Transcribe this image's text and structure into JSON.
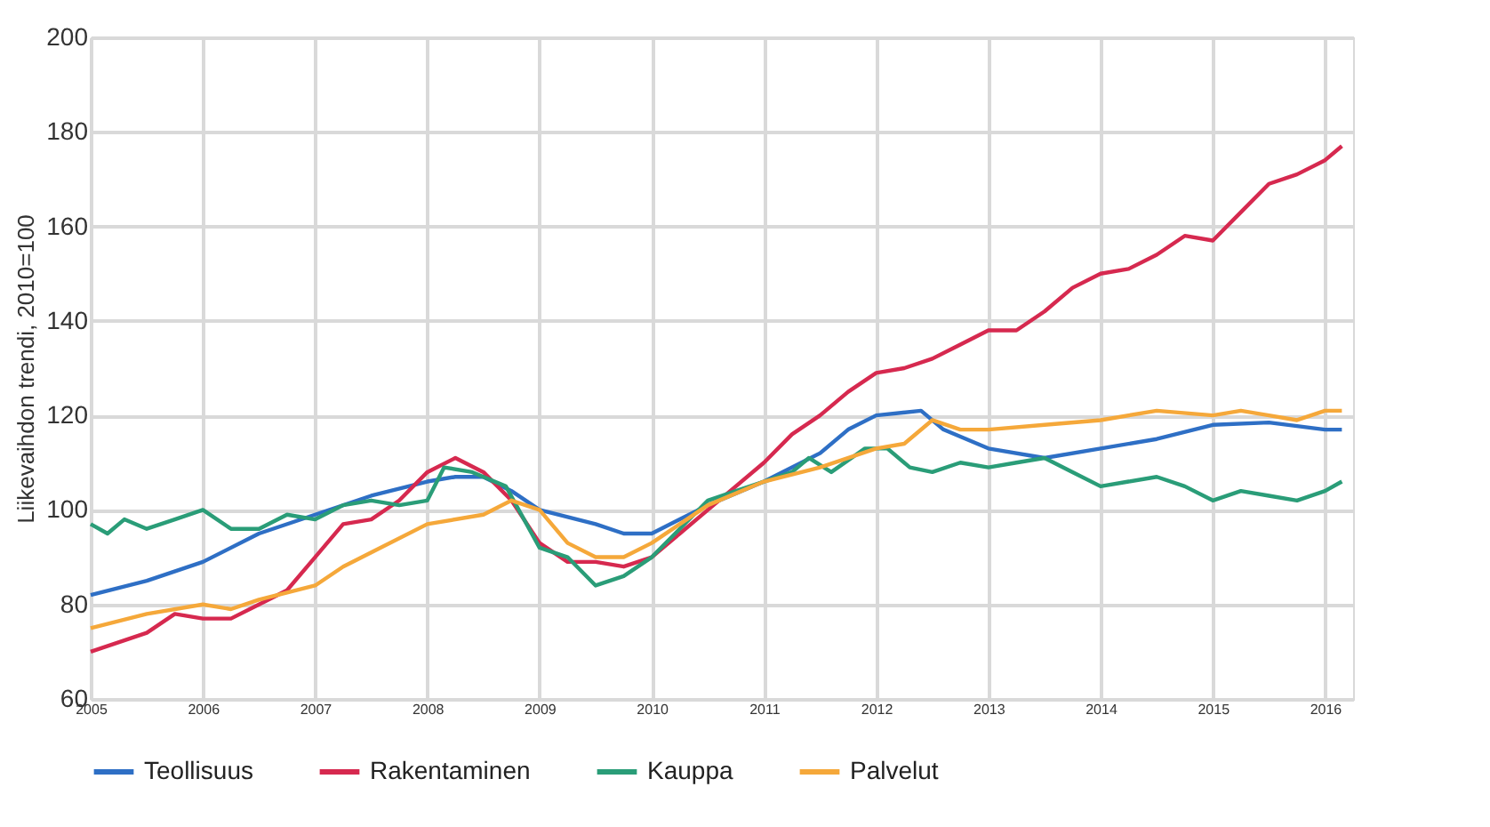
{
  "chart_data": {
    "type": "line",
    "ylabel": "Liikevaihdon trendi, 2010=100",
    "xlim": [
      2005,
      2016.25
    ],
    "xticks": [
      2005,
      2006,
      2007,
      2008,
      2009,
      2010,
      2011,
      2012,
      2013,
      2014,
      2015,
      2016
    ],
    "ylim": [
      60,
      200
    ],
    "yticks": [
      60,
      80,
      100,
      120,
      140,
      160,
      180,
      200
    ],
    "grid": true,
    "legend": "bottom",
    "series": [
      {
        "name": "Teollisuus",
        "color": "#2e6fc5",
        "x": [
          2005,
          2005.5,
          2006,
          2006.5,
          2007,
          2007.5,
          2008,
          2008.25,
          2008.5,
          2008.75,
          2009,
          2009.5,
          2009.75,
          2010,
          2010.25,
          2010.5,
          2011,
          2011.5,
          2011.75,
          2012,
          2012.4,
          2012.6,
          2013,
          2013.5,
          2014,
          2014.5,
          2015,
          2015.5,
          2016,
          2016.15
        ],
        "values": [
          82,
          85,
          89,
          95,
          99,
          103,
          106,
          107,
          107,
          104,
          100,
          97,
          95,
          95,
          98,
          101,
          106,
          112,
          117,
          120,
          121,
          117,
          113,
          111,
          113,
          115,
          118,
          118.5,
          117,
          117
        ]
      },
      {
        "name": "Rakentaminen",
        "color": "#d6294f",
        "x": [
          2005,
          2005.5,
          2005.75,
          2006,
          2006.25,
          2006.5,
          2006.75,
          2007,
          2007.25,
          2007.5,
          2007.75,
          2008,
          2008.25,
          2008.5,
          2008.75,
          2009,
          2009.25,
          2009.5,
          2009.75,
          2010,
          2010.25,
          2010.5,
          2011,
          2011.25,
          2011.5,
          2011.75,
          2012,
          2012.25,
          2012.5,
          2012.75,
          2013,
          2013.25,
          2013.5,
          2013.75,
          2014,
          2014.25,
          2014.5,
          2014.75,
          2015,
          2015.25,
          2015.5,
          2015.75,
          2016,
          2016.15
        ],
        "values": [
          70,
          74,
          78,
          77,
          77,
          80,
          83,
          90,
          97,
          98,
          102,
          108,
          111,
          108,
          102,
          93,
          89,
          89,
          88,
          90,
          95,
          100,
          110,
          116,
          120,
          125,
          129,
          130,
          132,
          135,
          138,
          138,
          142,
          147,
          150,
          151,
          154,
          158,
          157,
          163,
          169,
          171,
          174,
          177
        ]
      },
      {
        "name": "Kauppa",
        "color": "#2a9d78",
        "x": [
          2005,
          2005.15,
          2005.3,
          2005.5,
          2005.75,
          2006,
          2006.25,
          2006.5,
          2006.75,
          2007,
          2007.25,
          2007.5,
          2007.75,
          2008,
          2008.15,
          2008.4,
          2008.7,
          2009,
          2009.25,
          2009.5,
          2009.75,
          2010,
          2010.25,
          2010.5,
          2010.75,
          2011,
          2011.25,
          2011.4,
          2011.6,
          2011.9,
          2012.1,
          2012.3,
          2012.5,
          2012.75,
          2013,
          2013.25,
          2013.5,
          2013.75,
          2014,
          2014.25,
          2014.5,
          2014.75,
          2015,
          2015.25,
          2015.5,
          2015.75,
          2016,
          2016.15
        ],
        "values": [
          97,
          95,
          98,
          96,
          98,
          100,
          96,
          96,
          99,
          98,
          101,
          102,
          101,
          102,
          109,
          108,
          105,
          92,
          90,
          84,
          86,
          90,
          96,
          102,
          104,
          106,
          108,
          111,
          108,
          113,
          113,
          109,
          108,
          110,
          109,
          110,
          111,
          108,
          105,
          106,
          107,
          105,
          102,
          104,
          103,
          102,
          104,
          106
        ]
      },
      {
        "name": "Palvelut",
        "color": "#f5a83a",
        "x": [
          2005,
          2005.5,
          2006,
          2006.25,
          2006.5,
          2007,
          2007.25,
          2007.5,
          2008,
          2008.5,
          2008.75,
          2009,
          2009.25,
          2009.5,
          2009.75,
          2010,
          2010.25,
          2010.5,
          2011,
          2011.5,
          2012,
          2012.25,
          2012.5,
          2012.75,
          2013,
          2013.5,
          2014,
          2014.5,
          2015,
          2015.25,
          2015.5,
          2015.75,
          2016,
          2016.15
        ],
        "values": [
          75,
          78,
          80,
          79,
          81,
          84,
          88,
          91,
          97,
          99,
          102,
          100,
          93,
          90,
          90,
          93,
          97,
          101,
          106,
          109,
          113,
          114,
          119,
          117,
          117,
          118,
          119,
          121,
          120,
          121,
          120,
          119,
          121,
          121
        ]
      }
    ]
  }
}
